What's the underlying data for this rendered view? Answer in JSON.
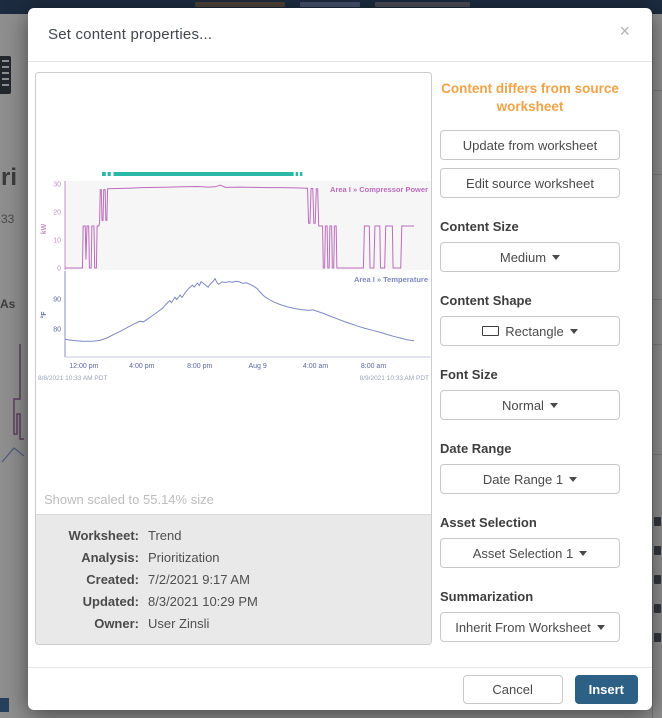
{
  "backdrop": {
    "left_fragments": [
      "ri",
      "33",
      "As"
    ]
  },
  "modal": {
    "title": "Set content properties...",
    "close_label": "×"
  },
  "preview": {
    "scale_note": "Shown scaled to 55.14% size",
    "metadata": {
      "rows": [
        {
          "label": "Worksheet:",
          "value": "Trend"
        },
        {
          "label": "Analysis:",
          "value": "Prioritization"
        },
        {
          "label": "Created:",
          "value": "7/2/2021 9:17 AM"
        },
        {
          "label": "Updated:",
          "value": "8/3/2021 10:29 PM"
        },
        {
          "label": "Owner:",
          "value": "User Zinsli"
        }
      ]
    }
  },
  "panel": {
    "warning": "Content differs from source worksheet",
    "update_button": "Update from worksheet",
    "edit_button": "Edit source worksheet",
    "fields": [
      {
        "label": "Content Size",
        "value": "Medium"
      },
      {
        "label": "Content Shape",
        "value": "Rectangle"
      },
      {
        "label": "Font Size",
        "value": "Normal"
      },
      {
        "label": "Date Range",
        "value": "Date Range 1"
      },
      {
        "label": "Asset Selection",
        "value": "Asset Selection 1"
      },
      {
        "label": "Summarization",
        "value": "Inherit From Worksheet"
      }
    ]
  },
  "footer": {
    "cancel_label": "Cancel",
    "insert_label": "Insert"
  },
  "chart_data": [
    {
      "type": "line",
      "title": "Area I » Compressor Power",
      "ylabel": "kW",
      "ylim": [
        0,
        30
      ],
      "yticks": [
        0,
        10,
        20,
        30
      ],
      "color": "#bc6cbc",
      "axis_color": "#c393c3",
      "background": "#f6f6f6",
      "capsule_color": "#2ab9a6",
      "capsule_segments": [
        [
          0.106,
          0.117
        ],
        [
          0.122,
          0.131
        ],
        [
          0.139,
          0.655
        ],
        [
          0.661,
          0.668
        ],
        [
          0.673,
          0.68
        ]
      ],
      "series": [
        {
          "name": "Area I » Compressor Power",
          "points": [
            [
              0,
              0
            ],
            [
              0.05,
              0
            ],
            [
              0.052,
              15
            ],
            [
              0.058,
              15
            ],
            [
              0.06,
              3
            ],
            [
              0.063,
              15
            ],
            [
              0.068,
              15
            ],
            [
              0.07,
              0
            ],
            [
              0.075,
              0
            ],
            [
              0.077,
              15
            ],
            [
              0.083,
              15
            ],
            [
              0.085,
              0
            ],
            [
              0.09,
              0
            ],
            [
              0.092,
              15
            ],
            [
              0.097,
              15
            ],
            [
              0.099,
              16
            ],
            [
              0.101,
              28
            ],
            [
              0.104,
              28
            ],
            [
              0.106,
              17
            ],
            [
              0.109,
              17
            ],
            [
              0.111,
              28
            ],
            [
              0.115,
              28
            ],
            [
              0.117,
              17
            ],
            [
              0.12,
              17
            ],
            [
              0.122,
              28.3
            ],
            [
              0.15,
              28.4
            ],
            [
              0.18,
              28.5
            ],
            [
              0.22,
              28.7
            ],
            [
              0.26,
              28.8
            ],
            [
              0.3,
              28.9
            ],
            [
              0.34,
              29
            ],
            [
              0.38,
              29.1
            ],
            [
              0.41,
              28.9
            ],
            [
              0.43,
              29
            ],
            [
              0.445,
              29.6
            ],
            [
              0.46,
              28.8
            ],
            [
              0.5,
              28.9
            ],
            [
              0.54,
              28.8
            ],
            [
              0.58,
              28.7
            ],
            [
              0.62,
              28.7
            ],
            [
              0.66,
              28.6
            ],
            [
              0.695,
              28.5
            ],
            [
              0.698,
              16
            ],
            [
              0.702,
              16
            ],
            [
              0.705,
              28.4
            ],
            [
              0.71,
              28.4
            ],
            [
              0.713,
              16
            ],
            [
              0.717,
              16
            ],
            [
              0.72,
              28.3
            ],
            [
              0.724,
              28.3
            ],
            [
              0.727,
              15
            ],
            [
              0.738,
              15
            ],
            [
              0.74,
              0
            ],
            [
              0.744,
              0
            ],
            [
              0.746,
              15
            ],
            [
              0.751,
              15
            ],
            [
              0.753,
              0
            ],
            [
              0.757,
              0
            ],
            [
              0.759,
              15
            ],
            [
              0.764,
              15
            ],
            [
              0.766,
              0
            ],
            [
              0.77,
              0
            ],
            [
              0.772,
              15
            ],
            [
              0.777,
              15
            ],
            [
              0.779,
              0
            ],
            [
              0.855,
              0
            ],
            [
              0.858,
              15
            ],
            [
              0.872,
              15
            ],
            [
              0.874,
              0
            ],
            [
              0.885,
              0
            ],
            [
              0.888,
              15
            ],
            [
              0.902,
              15
            ],
            [
              0.904,
              0
            ],
            [
              0.916,
              0
            ],
            [
              0.919,
              15
            ],
            [
              0.938,
              15
            ],
            [
              0.94,
              0
            ],
            [
              0.962,
              0
            ],
            [
              0.965,
              15
            ],
            [
              1,
              15
            ]
          ]
        }
      ]
    },
    {
      "type": "line",
      "title": "Area I » Temperature",
      "ylabel": "°F",
      "ylim": [
        73,
        99
      ],
      "yticks": [
        80,
        90
      ],
      "color": "#7f89c5",
      "axis_color": "#8a93c5",
      "x_ticks": [
        "12:00 pm",
        "4:00 pm",
        "8:00 pm",
        "Aug 9",
        "4:00 am",
        "8:00 am"
      ],
      "x_start_label": "8/8/2021 10:33 AM PDT",
      "x_end_label": "8/9/2021 10:33 AM PDT",
      "series": [
        {
          "name": "Area I » Temperature",
          "points": [
            [
              0,
              76.6
            ],
            [
              0.02,
              76.2
            ],
            [
              0.05,
              75.9
            ],
            [
              0.08,
              75.9
            ],
            [
              0.1,
              76.2
            ],
            [
              0.12,
              77
            ],
            [
              0.14,
              78.2
            ],
            [
              0.16,
              79.3
            ],
            [
              0.18,
              80.6
            ],
            [
              0.2,
              81.8
            ],
            [
              0.215,
              82.6
            ],
            [
              0.225,
              82.4
            ],
            [
              0.24,
              83.6
            ],
            [
              0.26,
              85.2
            ],
            [
              0.28,
              87
            ],
            [
              0.29,
              88.3
            ],
            [
              0.3,
              89.5
            ],
            [
              0.305,
              88.8
            ],
            [
              0.315,
              90.6
            ],
            [
              0.32,
              89.8
            ],
            [
              0.33,
              91.3
            ],
            [
              0.335,
              90.5
            ],
            [
              0.345,
              92.2
            ],
            [
              0.355,
              93.6
            ],
            [
              0.365,
              94.6
            ],
            [
              0.37,
              94
            ],
            [
              0.38,
              95.3
            ],
            [
              0.385,
              94.5
            ],
            [
              0.39,
              95.8
            ],
            [
              0.4,
              94.9
            ],
            [
              0.41,
              93.9
            ],
            [
              0.415,
              94.8
            ],
            [
              0.425,
              96
            ],
            [
              0.43,
              96.8
            ],
            [
              0.435,
              95.6
            ],
            [
              0.44,
              94.9
            ],
            [
              0.45,
              95.7
            ],
            [
              0.46,
              95.5
            ],
            [
              0.47,
              95.8
            ],
            [
              0.48,
              95.6
            ],
            [
              0.49,
              95.9
            ],
            [
              0.5,
              95.7
            ],
            [
              0.51,
              95.2
            ],
            [
              0.52,
              95.4
            ],
            [
              0.53,
              94.9
            ],
            [
              0.54,
              94.3
            ],
            [
              0.55,
              93.5
            ],
            [
              0.56,
              92.2
            ],
            [
              0.57,
              91
            ],
            [
              0.58,
              90.2
            ],
            [
              0.59,
              89.5
            ],
            [
              0.6,
              88.9
            ],
            [
              0.62,
              88
            ],
            [
              0.64,
              87.3
            ],
            [
              0.66,
              86.8
            ],
            [
              0.68,
              86.4
            ],
            [
              0.7,
              86.2
            ],
            [
              0.71,
              86.4
            ],
            [
              0.72,
              86
            ],
            [
              0.74,
              85.2
            ],
            [
              0.76,
              84.3
            ],
            [
              0.78,
              83.4
            ],
            [
              0.8,
              82.5
            ],
            [
              0.82,
              81.7
            ],
            [
              0.84,
              80.9
            ],
            [
              0.86,
              80.2
            ],
            [
              0.88,
              79.6
            ],
            [
              0.9,
              79
            ],
            [
              0.92,
              78.3
            ],
            [
              0.94,
              77.6
            ],
            [
              0.96,
              77
            ],
            [
              0.98,
              76.4
            ],
            [
              1,
              76.1
            ]
          ]
        }
      ]
    }
  ]
}
